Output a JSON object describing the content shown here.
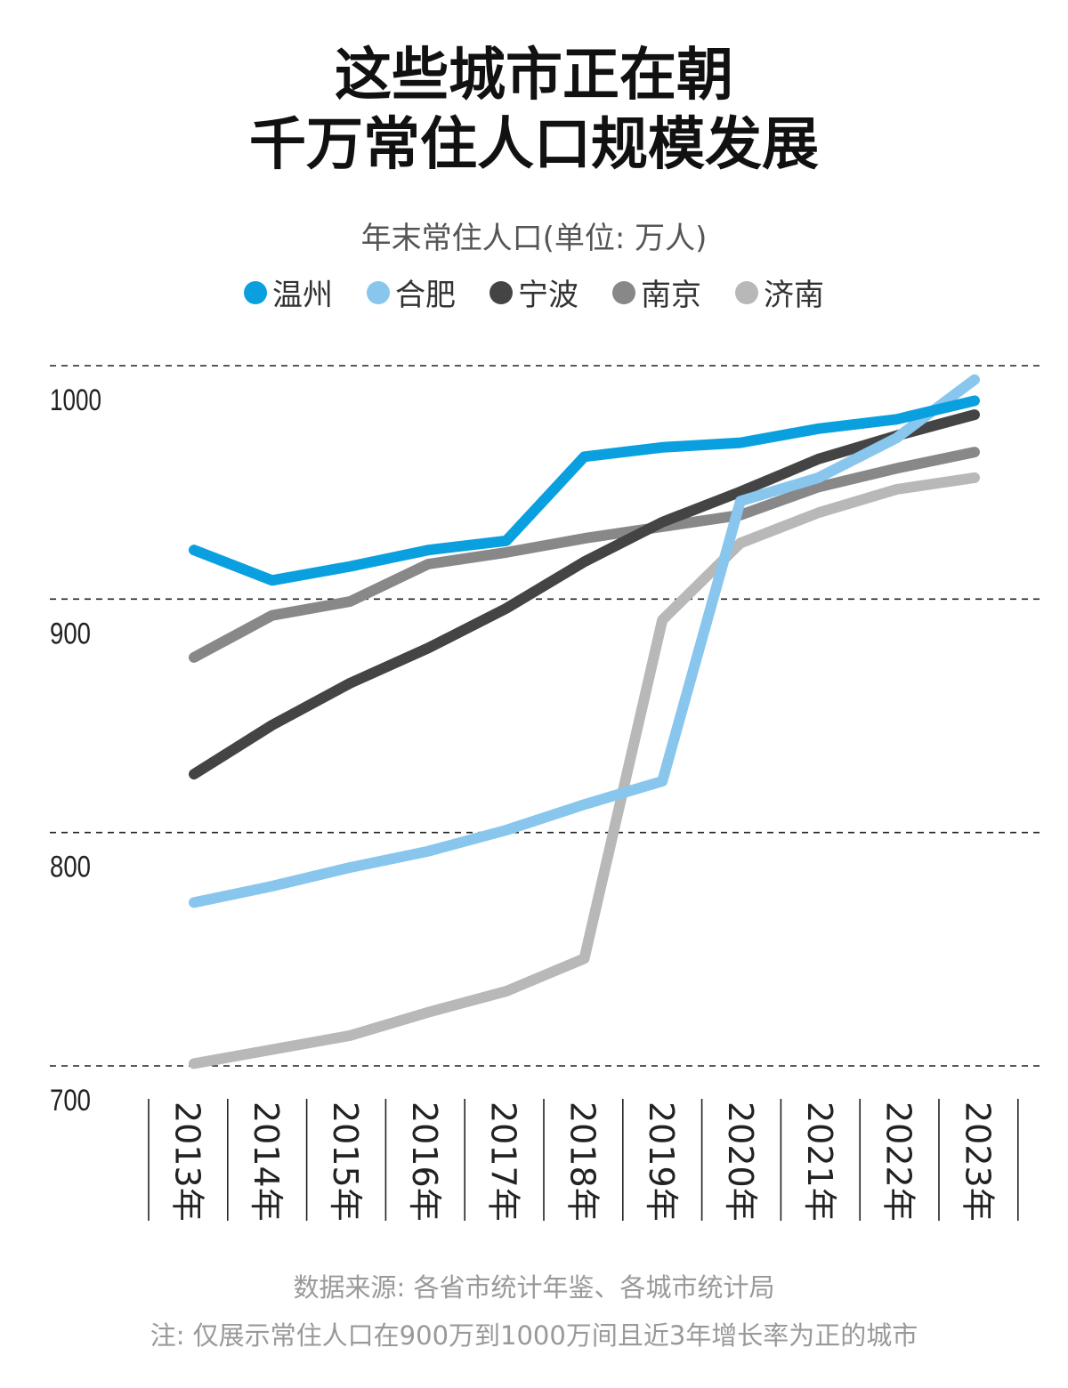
{
  "title_line1": "这些城市正在朝",
  "title_line2": "千万常住人口规模发展",
  "colors": {
    "温州": "#0aa0e0",
    "合肥": "#88c6ee",
    "宁波": "#444444",
    "南京": "#888888",
    "济南": "#b8b8b8"
  },
  "legend": [
    {
      "name": "温州",
      "color": "#0aa0e0"
    },
    {
      "name": "合肥",
      "color": "#88c6ee"
    },
    {
      "name": "宁波",
      "color": "#444444"
    },
    {
      "name": "南京",
      "color": "#888888"
    },
    {
      "name": "济南",
      "color": "#b8b8b8"
    }
  ],
  "footer": {
    "source": "数据来源: 各省市统计年鉴、各城市统计局",
    "note": "注: 仅展示常住人口在900万到1000万间且近3年增长率为正的城市"
  },
  "chart_data": {
    "type": "line",
    "title": "这些城市正在朝千万常住人口规模发展",
    "subtitle": "年末常住人口(单位: 万人)",
    "x": [
      "2013年",
      "2014年",
      "2015年",
      "2016年",
      "2017年",
      "2018年",
      "2019年",
      "2020年",
      "2021年",
      "2022年",
      "2023年"
    ],
    "ylim": [
      700,
      1000
    ],
    "yticks": [
      1000,
      900,
      800,
      700
    ],
    "grid": "horizontal dashed",
    "legend_position": "top",
    "series": [
      {
        "name": "温州",
        "values": [
          921,
          908,
          914,
          921,
          925,
          961,
          965,
          967,
          973,
          977,
          985
        ]
      },
      {
        "name": "合肥",
        "values": [
          770,
          777,
          785,
          792,
          801,
          812,
          822,
          942,
          952,
          969,
          994
        ]
      },
      {
        "name": "宁波",
        "values": [
          825,
          846,
          864,
          879,
          896,
          916,
          933,
          946,
          960,
          970,
          979
        ]
      },
      {
        "name": "南京",
        "values": [
          875,
          893,
          899,
          915,
          920,
          926,
          931,
          936,
          948,
          956,
          963
        ]
      },
      {
        "name": "济南",
        "values": [
          701,
          707,
          713,
          723,
          732,
          746,
          891,
          924,
          937,
          947,
          952
        ]
      }
    ]
  }
}
